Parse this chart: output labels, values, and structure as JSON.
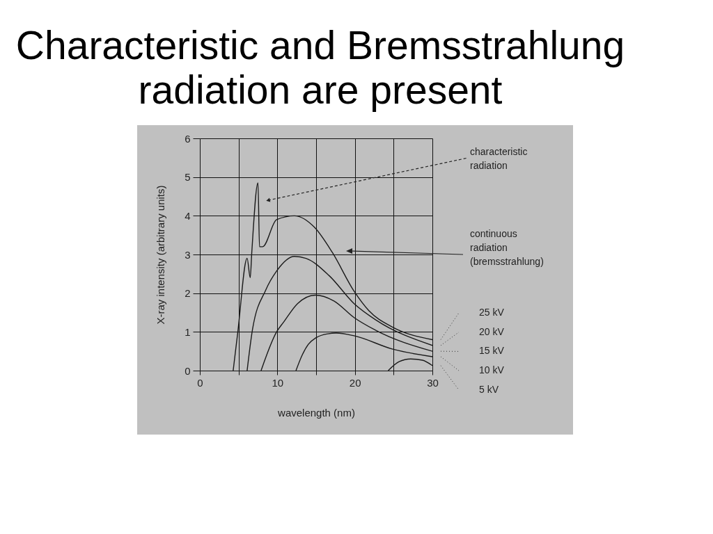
{
  "chart_data": {
    "type": "line",
    "title": "Characteristic and Bremsstrahlung radiation are present",
    "xlabel": "wavelength (nm)",
    "ylabel": "X-ray intensity (arbitrary units)",
    "xlim": [
      0,
      30
    ],
    "ylim": [
      0,
      6
    ],
    "xticks": [
      0,
      {
        "value": 5,
        "label": null
      },
      10,
      {
        "value": 15,
        "label": null
      },
      20,
      {
        "value": 25,
        "label": null
      },
      30
    ],
    "yticks": [
      0,
      1,
      2,
      3,
      4,
      5,
      6
    ],
    "grid": true,
    "series": [
      {
        "name": "25 kV",
        "color": "#1a1a1a",
        "x": [
          4.3,
          4.9,
          6.1,
          6.5,
          6.7,
          7.5,
          7.7,
          8.1,
          9.9,
          12.2,
          14.8,
          17.1,
          19.9,
          21.8,
          24.8,
          30
        ],
        "values": [
          0,
          1.0,
          2.9,
          2.4,
          3.05,
          4.85,
          3.2,
          3.2,
          3.9,
          4.0,
          3.7,
          3.05,
          2.05,
          1.55,
          1.13,
          0.8
        ]
      },
      {
        "name": "20 kV",
        "color": "#1a1a1a",
        "x": [
          6.1,
          6.8,
          8.5,
          9.9,
          12.2,
          13.7,
          16.7,
          19.9,
          22.7,
          30
        ],
        "values": [
          0,
          1.07,
          2.08,
          2.57,
          2.95,
          2.9,
          2.45,
          1.73,
          1.31,
          0.65
        ]
      },
      {
        "name": "15 kV",
        "color": "#1a1a1a",
        "x": [
          7.9,
          9.9,
          10.8,
          12.6,
          14.9,
          17.3,
          19.9,
          22.7,
          30
        ],
        "values": [
          0,
          1.0,
          1.25,
          1.73,
          1.95,
          1.8,
          1.37,
          1.04,
          0.5
        ]
      },
      {
        "name": "10 kV",
        "color": "#1a1a1a",
        "x": [
          12.4,
          13.2,
          14.0,
          15.0,
          16.5,
          17.6,
          19.9,
          24.8,
          30
        ],
        "values": [
          0,
          0.4,
          0.68,
          0.85,
          0.95,
          0.97,
          0.9,
          0.56,
          0.36
        ]
      },
      {
        "name": "5 kV",
        "color": "#1a1a1a",
        "x": [
          24.3,
          25.7,
          27.2,
          28.7,
          30
        ],
        "values": [
          0,
          0.23,
          0.3,
          0.27,
          0.13
        ]
      }
    ],
    "annotations": [
      {
        "text": "characteristic radiation",
        "x": 8.8,
        "y": 4.4
      },
      "continuous radiation (bremsstrahlung)"
    ]
  }
}
